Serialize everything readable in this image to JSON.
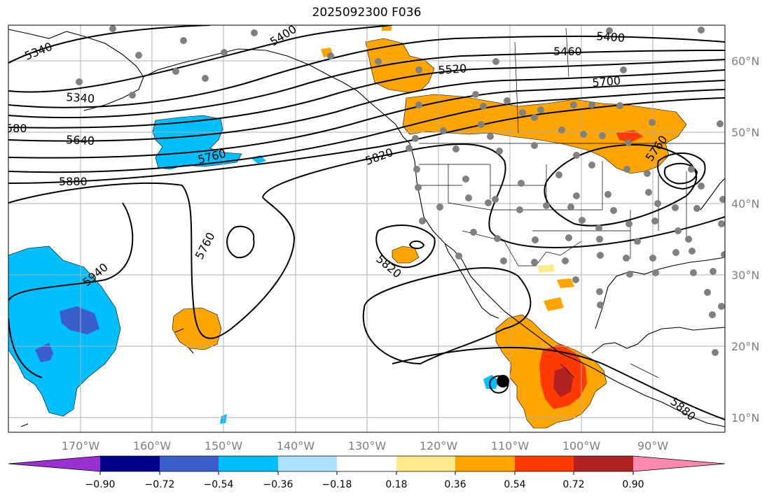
{
  "title": "2025092300 F036",
  "lat_labels": [
    "60°N",
    "50°N",
    "40°N",
    "30°N",
    "20°N",
    "10°N"
  ],
  "lon_labels": [
    "170°W",
    "160°W",
    "150°W",
    "140°W",
    "130°W",
    "120°W",
    "110°W",
    "100°W",
    "90°W"
  ],
  "contour_labels": [
    "5340",
    "5400",
    "5340",
    "580",
    "5640",
    "5880",
    "5760",
    "5760",
    "5940",
    "5460",
    "5400",
    "5520",
    "5700",
    "5820",
    "5820",
    "5760",
    "5880"
  ],
  "colorbar": {
    "ticks": [
      "−0.90",
      "−0.72",
      "−0.54",
      "−0.36",
      "−0.18",
      "0.18",
      "0.36",
      "0.54",
      "0.72",
      "0.90"
    ],
    "colors": [
      "#9b30d0",
      "#00008b",
      "#3a5fcd",
      "#00bfff",
      "#aee0ff",
      "#ffffff",
      "#ffe98a",
      "#ffa500",
      "#ff3a00",
      "#b22222",
      "#ff88b0"
    ]
  }
}
